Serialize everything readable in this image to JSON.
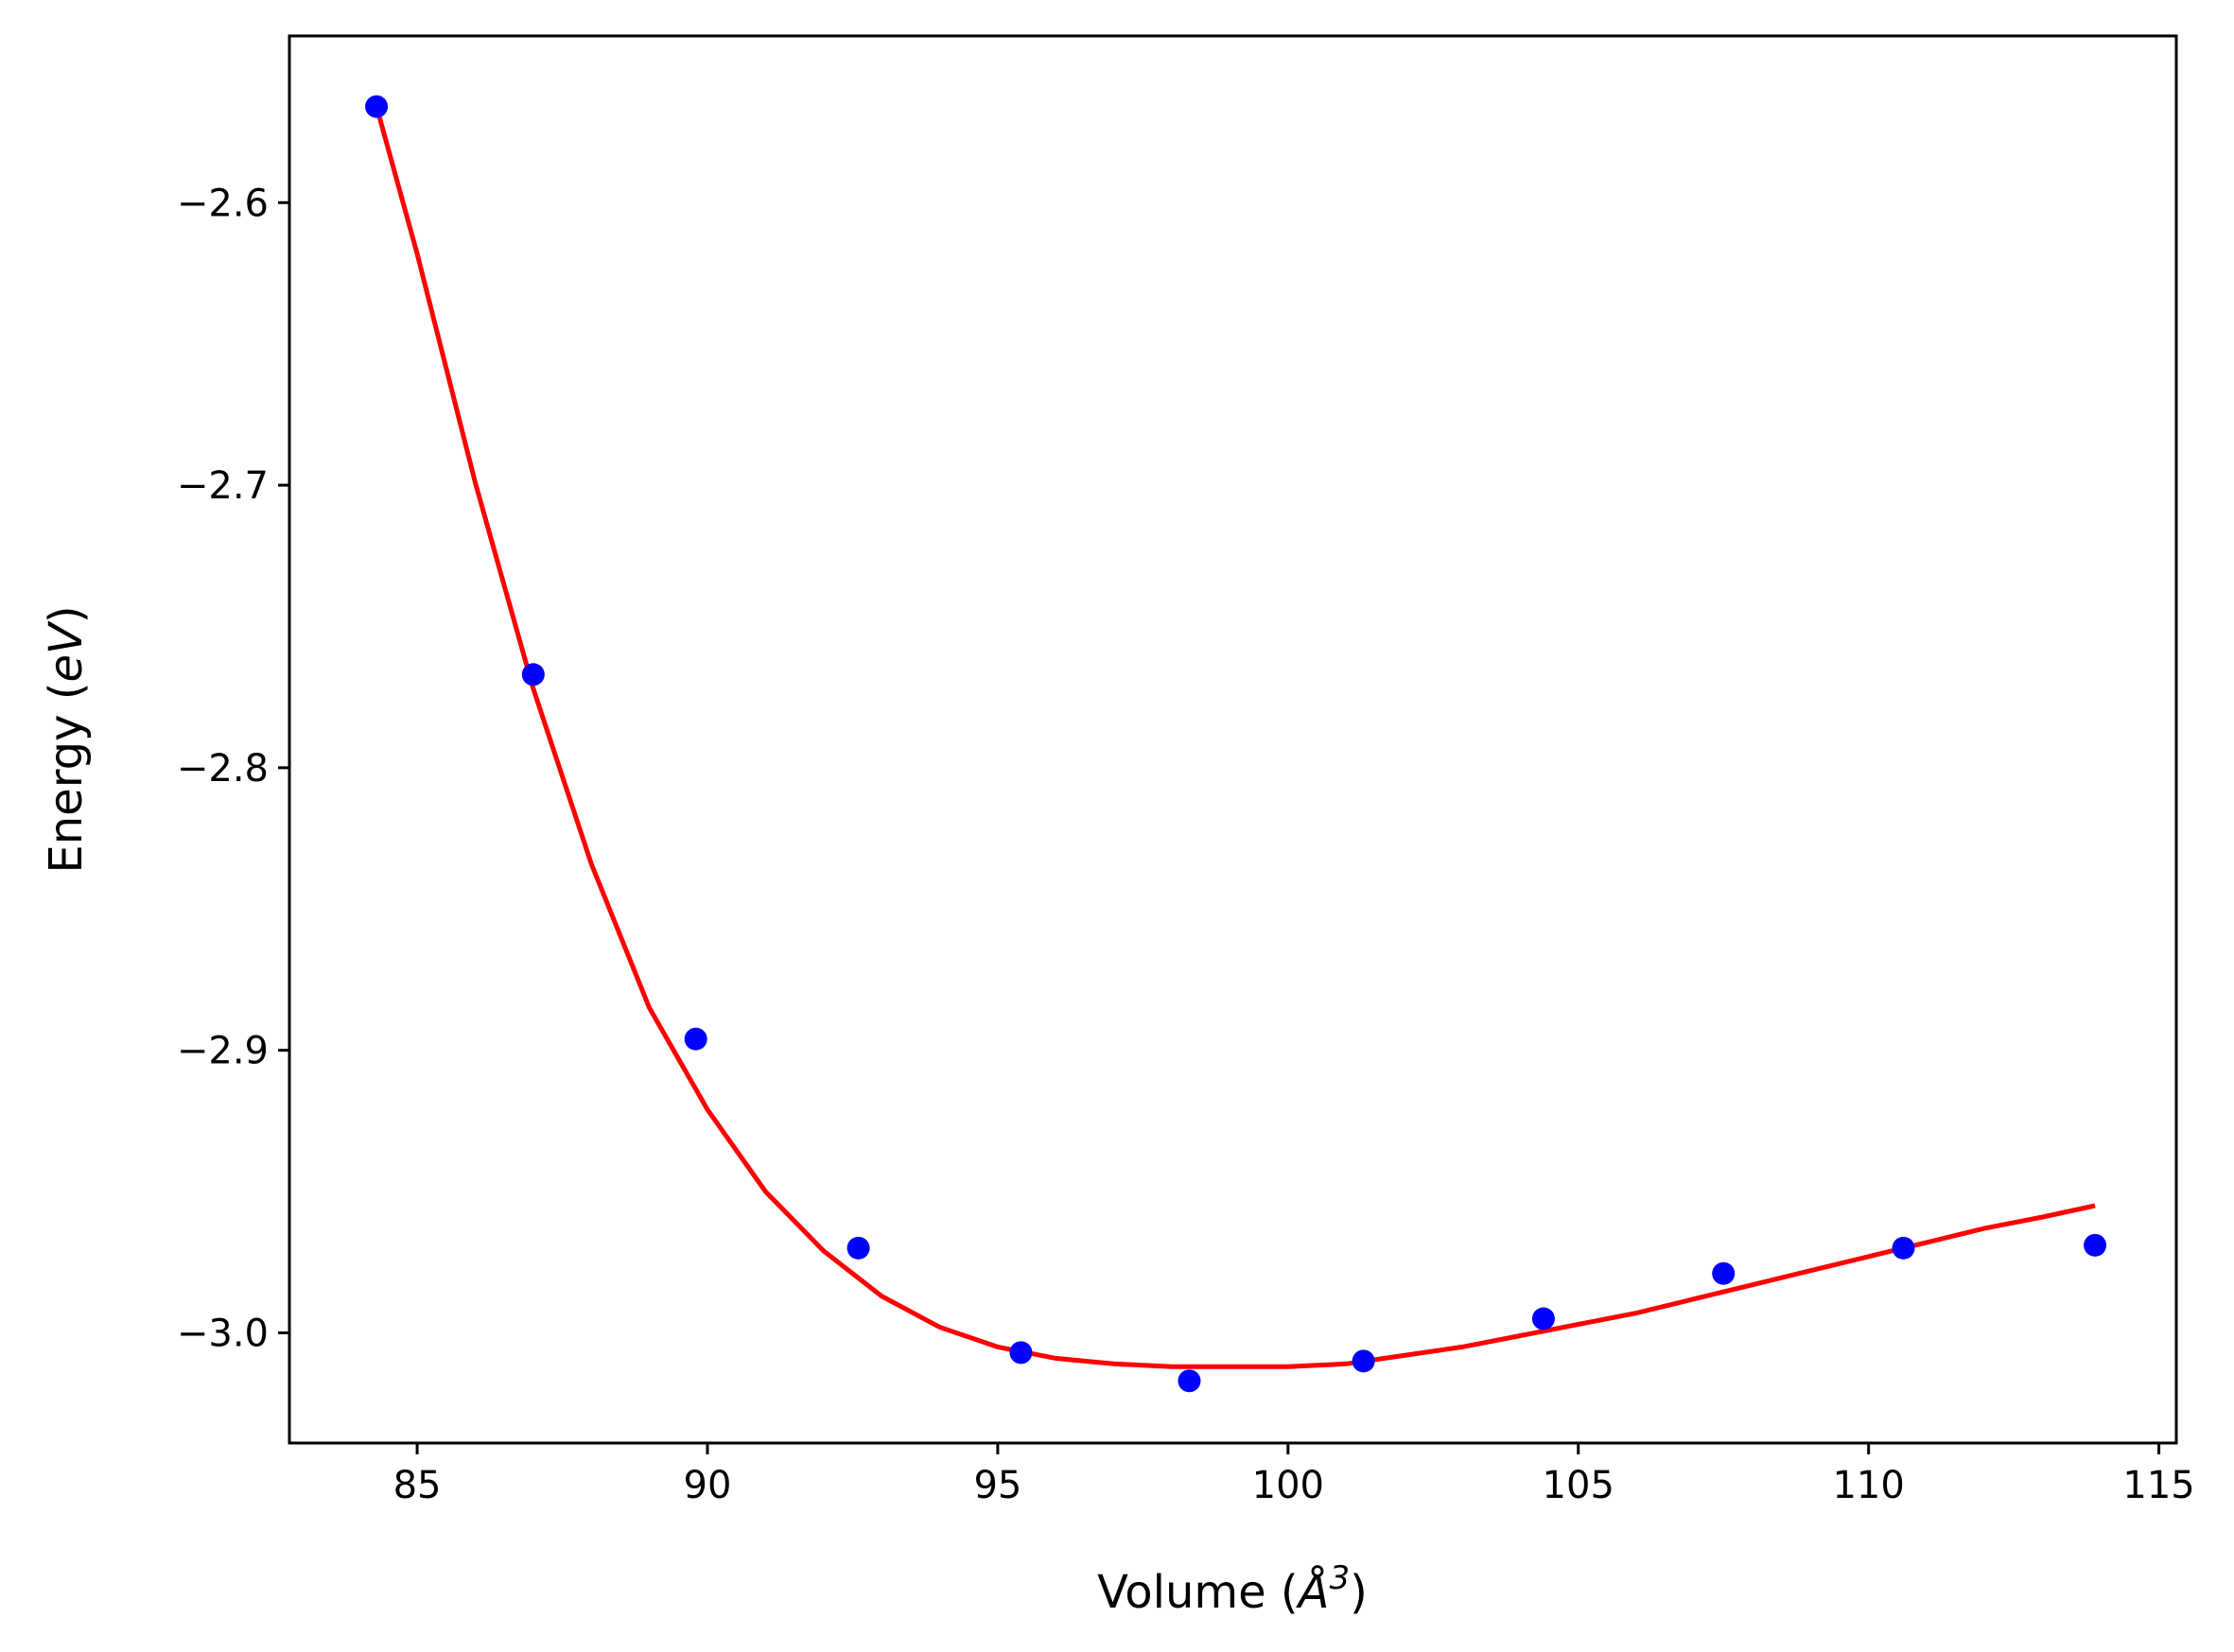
{
  "chart_data": {
    "type": "scatter",
    "title": "",
    "xlabel_prefix": "Volume (",
    "xlabel_symbol": "Å",
    "xlabel_sup": "3",
    "xlabel_suffix": ")",
    "ylabel_prefix": "Energy (",
    "ylabel_italic": "eV",
    "ylabel_suffix": ")",
    "xlim": [
      82.8,
      115.3
    ],
    "ylim": [
      -3.039,
      -2.541
    ],
    "xticks": [
      85,
      90,
      95,
      100,
      105,
      110,
      115
    ],
    "xtick_labels": [
      "85",
      "90",
      "95",
      "100",
      "105",
      "110",
      "115"
    ],
    "yticks": [
      -2.6,
      -2.7,
      -2.8,
      -2.9,
      -3.0
    ],
    "ytick_labels": [
      "−2.6",
      "−2.7",
      "−2.8",
      "−2.9",
      "−3.0"
    ],
    "grid": false,
    "points": {
      "color": "#0000ff",
      "x": [
        84.3,
        87.0,
        89.8,
        92.6,
        95.4,
        98.3,
        101.3,
        104.4,
        107.5,
        110.6,
        113.9
      ],
      "y": [
        -2.566,
        -2.767,
        -2.896,
        -2.97,
        -3.007,
        -3.017,
        -3.01,
        -2.995,
        -2.979,
        -2.97,
        -2.969
      ]
    },
    "fit_curve": {
      "color": "#ff0000",
      "x": [
        84.3,
        85.0,
        86.0,
        87.0,
        88.0,
        89.0,
        90.0,
        91.0,
        92.0,
        93.0,
        94.0,
        95.0,
        96.0,
        97.0,
        98.0,
        99.0,
        100.0,
        101.0,
        102.0,
        103.0,
        104.0,
        105.0,
        106.0,
        107.0,
        108.0,
        109.0,
        110.0,
        111.0,
        112.0,
        113.0,
        113.9
      ],
      "y": [
        -2.566,
        -2.618,
        -2.699,
        -2.772,
        -2.834,
        -2.885,
        -2.921,
        -2.95,
        -2.971,
        -2.987,
        -2.998,
        -3.005,
        -3.009,
        -3.011,
        -3.012,
        -3.012,
        -3.012,
        -3.011,
        -3.008,
        -3.005,
        -3.001,
        -2.997,
        -2.993,
        -2.988,
        -2.983,
        -2.978,
        -2.973,
        -2.968,
        -2.963,
        -2.959,
        -2.955
      ]
    }
  }
}
